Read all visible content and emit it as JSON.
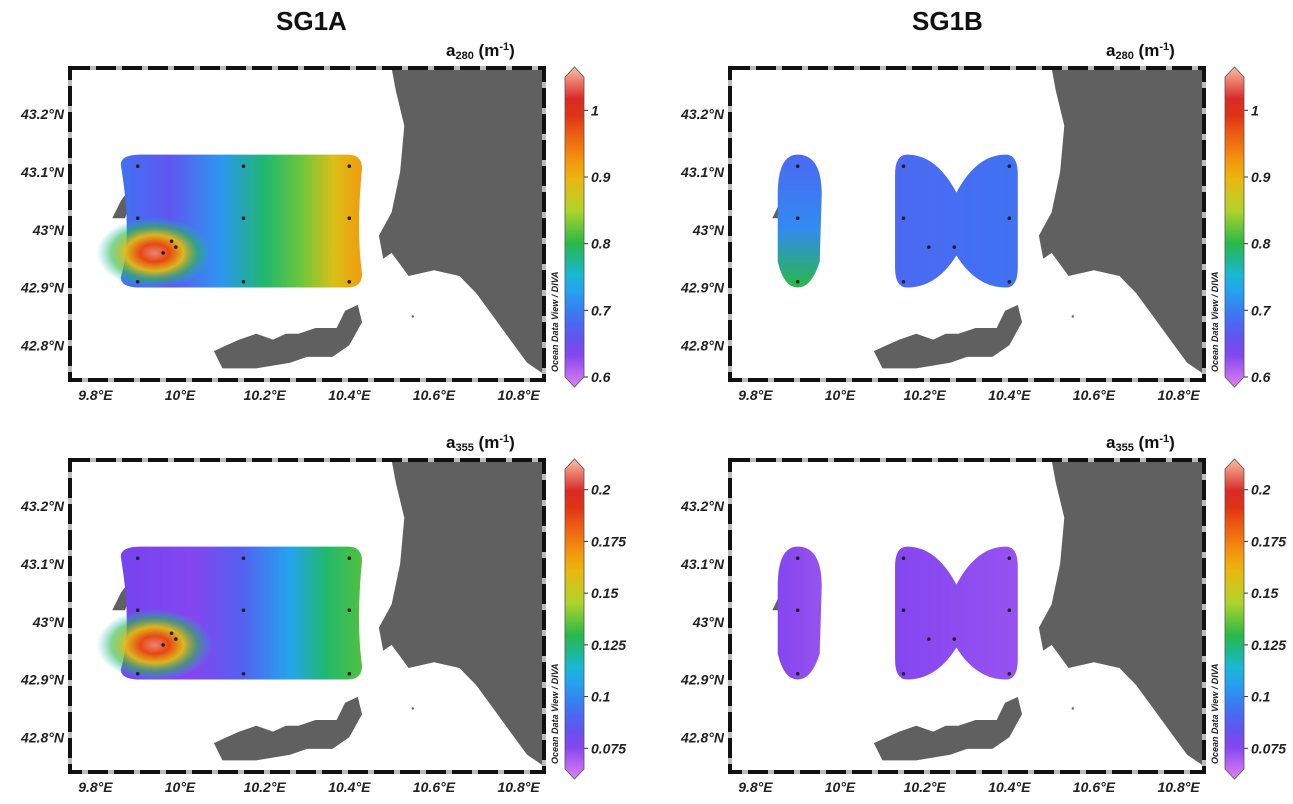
{
  "column_titles": [
    "SG1A",
    "SG1B"
  ],
  "credit": "Ocean Data View / DIVA",
  "chart_data": [
    {
      "type": "heatmap",
      "title": "SG1A",
      "variable": "a",
      "variable_sub": "280",
      "unit": "(m",
      "unit_sup": "-1",
      "unit_close": ")",
      "x_ticks": [
        "9.8°E",
        "10°E",
        "10.2°E",
        "10.4°E",
        "10.6°E",
        "10.8°E"
      ],
      "xlim": [
        9.74,
        10.86
      ],
      "y_ticks": [
        "42.8°N",
        "42.9°N",
        "43°N",
        "43.1°N",
        "43.2°N"
      ],
      "ylim": [
        42.74,
        43.28
      ],
      "colorbar_ticks": [
        0.6,
        0.7,
        0.8,
        0.9,
        1
      ],
      "colorbar_labels": [
        "0.6",
        "0.7",
        "0.8",
        "0.9",
        "1"
      ],
      "colorbar_range": [
        0.6,
        1.05
      ],
      "stations": [
        [
          9.9,
          43.11
        ],
        [
          10.15,
          43.11
        ],
        [
          10.4,
          43.11
        ],
        [
          9.9,
          43.02
        ],
        [
          10.15,
          43.02
        ],
        [
          10.4,
          43.02
        ],
        [
          9.98,
          42.98
        ],
        [
          9.99,
          42.97
        ],
        [
          9.96,
          42.96
        ],
        [
          9.9,
          42.91
        ],
        [
          10.15,
          42.91
        ],
        [
          10.4,
          42.91
        ]
      ],
      "hotspot": [
        9.94,
        42.96,
        1.05
      ]
    },
    {
      "type": "heatmap",
      "title": "SG1B",
      "variable": "a",
      "variable_sub": "280",
      "unit": "(m",
      "unit_sup": "-1",
      "unit_close": ")",
      "x_ticks": [
        "9.8°E",
        "10°E",
        "10.2°E",
        "10.4°E",
        "10.6°E",
        "10.8°E"
      ],
      "xlim": [
        9.74,
        10.86
      ],
      "y_ticks": [
        "42.8°N",
        "42.9°N",
        "43°N",
        "43.1°N",
        "43.2°N"
      ],
      "ylim": [
        42.74,
        43.28
      ],
      "colorbar_ticks": [
        0.6,
        0.7,
        0.8,
        0.9,
        1
      ],
      "colorbar_labels": [
        "0.6",
        "0.7",
        "0.8",
        "0.9",
        "1"
      ],
      "colorbar_range": [
        0.6,
        1.05
      ],
      "stations": [
        [
          9.9,
          43.11
        ],
        [
          9.9,
          43.02
        ],
        [
          9.9,
          42.91
        ],
        [
          10.15,
          43.11
        ],
        [
          10.4,
          43.11
        ],
        [
          10.15,
          43.02
        ],
        [
          10.4,
          43.02
        ],
        [
          10.21,
          42.97
        ],
        [
          10.27,
          42.97
        ],
        [
          10.15,
          42.91
        ],
        [
          10.4,
          42.91
        ]
      ]
    },
    {
      "type": "heatmap",
      "title": "SG1A",
      "variable": "a",
      "variable_sub": "355",
      "unit": "(m",
      "unit_sup": "-1",
      "unit_close": ")",
      "x_ticks": [
        "9.8°E",
        "10°E",
        "10.2°E",
        "10.4°E",
        "10.6°E",
        "10.8°E"
      ],
      "xlim": [
        9.74,
        10.86
      ],
      "y_ticks": [
        "42.8°N",
        "42.9°N",
        "43°N",
        "43.1°N",
        "43.2°N"
      ],
      "ylim": [
        42.74,
        43.28
      ],
      "colorbar_ticks": [
        0.075,
        0.1,
        0.125,
        0.15,
        0.175,
        0.2
      ],
      "colorbar_labels": [
        "0.075",
        "0.1",
        "0.125",
        "0.15",
        "0.175",
        "0.2"
      ],
      "colorbar_range": [
        0.065,
        0.21
      ],
      "stations": [
        [
          9.9,
          43.11
        ],
        [
          10.15,
          43.11
        ],
        [
          10.4,
          43.11
        ],
        [
          9.9,
          43.02
        ],
        [
          10.15,
          43.02
        ],
        [
          10.4,
          43.02
        ],
        [
          9.98,
          42.98
        ],
        [
          9.99,
          42.97
        ],
        [
          9.96,
          42.96
        ],
        [
          9.9,
          42.91
        ],
        [
          10.15,
          42.91
        ],
        [
          10.4,
          42.91
        ]
      ],
      "hotspot": [
        9.94,
        42.96,
        0.2
      ]
    },
    {
      "type": "heatmap",
      "title": "SG1B",
      "variable": "a",
      "variable_sub": "355",
      "unit": "(m",
      "unit_sup": "-1",
      "unit_close": ")",
      "x_ticks": [
        "9.8°E",
        "10°E",
        "10.2°E",
        "10.4°E",
        "10.6°E",
        "10.8°E"
      ],
      "xlim": [
        9.74,
        10.86
      ],
      "y_ticks": [
        "42.8°N",
        "42.9°N",
        "43°N",
        "43.1°N",
        "43.2°N"
      ],
      "ylim": [
        42.74,
        43.28
      ],
      "colorbar_ticks": [
        0.075,
        0.1,
        0.125,
        0.15,
        0.175,
        0.2
      ],
      "colorbar_labels": [
        "0.075",
        "0.1",
        "0.125",
        "0.15",
        "0.175",
        "0.2"
      ],
      "colorbar_range": [
        0.065,
        0.21
      ],
      "stations": [
        [
          9.9,
          43.11
        ],
        [
          9.9,
          43.02
        ],
        [
          9.9,
          42.91
        ],
        [
          10.15,
          43.11
        ],
        [
          10.4,
          43.11
        ],
        [
          10.15,
          43.02
        ],
        [
          10.4,
          43.02
        ],
        [
          10.21,
          42.97
        ],
        [
          10.27,
          42.97
        ],
        [
          10.15,
          42.91
        ],
        [
          10.4,
          42.91
        ]
      ]
    }
  ]
}
